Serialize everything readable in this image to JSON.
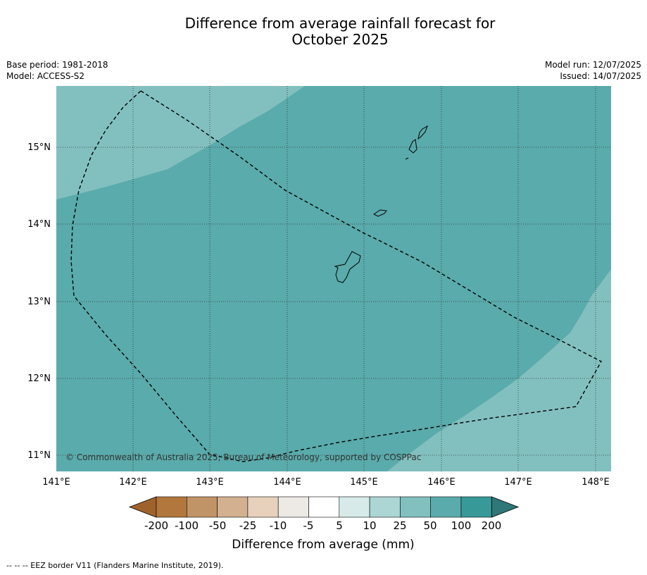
{
  "title_line1": "Difference from average rainfall forecast for",
  "title_line2": "October 2025",
  "meta_left": [
    "Base period: 1981-2018",
    "Model: ACCESS-S2"
  ],
  "meta_right": [
    "Model run: 12/07/2025",
    "Issued: 14/07/2025"
  ],
  "map": {
    "lon_ticks": [
      "141°E",
      "142°E",
      "143°E",
      "144°E",
      "145°E",
      "146°E",
      "147°E",
      "148°E"
    ],
    "lat_ticks": [
      "15°N",
      "14°N",
      "13°N",
      "12°N",
      "11°N"
    ],
    "copyright": "© Commonwealth of Australia 2025, Bureau of Meteorology, supported by COSPPac",
    "colors": {
      "band_50_100": "#5aabab",
      "band_25_50": "#82c0bf"
    }
  },
  "colorbar": {
    "title": "Difference from average (mm)",
    "labels": [
      "-200",
      "-100",
      "-50",
      "-25",
      "-10",
      "-5",
      "5",
      "10",
      "25",
      "50",
      "100",
      "200"
    ],
    "colors": [
      "#a0622d",
      "#b2773c",
      "#c19467",
      "#d3b090",
      "#e7d0bc",
      "#ede9e5",
      "#ffffff",
      "#d6ebe9",
      "#abd6d4",
      "#82c0bf",
      "#5aabab",
      "#389999",
      "#2f7778"
    ]
  },
  "footnote": "-- -- -- EEZ border V11 (Flanders Marine Institute, 2019)."
}
